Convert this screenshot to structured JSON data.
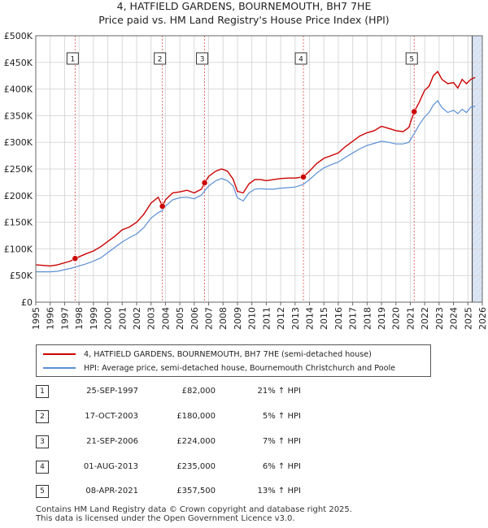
{
  "title_line1": "4, HATFIELD GARDENS, BOURNEMOUTH, BH7 7HE",
  "title_line2": "Price paid vs. HM Land Registry's House Price Index (HPI)",
  "legend": {
    "property_label": "4, HATFIELD GARDENS, BOURNEMOUTH, BH7 7HE (semi-detached house)",
    "hpi_label": "HPI: Average price, semi-detached house, Bournemouth Christchurch and Poole"
  },
  "colors": {
    "property": "#cc0000",
    "hpi": "#5b8fd6",
    "grid": "#d9d9d9",
    "shade": "#dde6f5",
    "marker_line": "#e06060"
  },
  "sales": [
    {
      "num": "1",
      "date": "25-SEP-1997",
      "price": "£82,000",
      "hpi": "21% ↑ HPI"
    },
    {
      "num": "2",
      "date": "17-OCT-2003",
      "price": "£180,000",
      "hpi": "5% ↑ HPI"
    },
    {
      "num": "3",
      "date": "21-SEP-2006",
      "price": "£224,000",
      "hpi": "7% ↑ HPI"
    },
    {
      "num": "4",
      "date": "01-AUG-2013",
      "price": "£235,000",
      "hpi": "6% ↑ HPI"
    },
    {
      "num": "5",
      "date": "08-APR-2021",
      "price": "£357,500",
      "hpi": "13% ↑ HPI"
    }
  ],
  "footer_line1": "Contains HM Land Registry data © Crown copyright and database right 2025.",
  "footer_line2": "This data is licensed under the Open Government Licence v3.0.",
  "chart_data": {
    "type": "line",
    "title": "4, HATFIELD GARDENS, BOURNEMOUTH, BH7 7HE",
    "subtitle": "Price paid vs. HM Land Registry's House Price Index (HPI)",
    "xlim": [
      1995,
      2026
    ],
    "ylim": [
      0,
      500000
    ],
    "x_ticks": [
      "1995",
      "1996",
      "1997",
      "1998",
      "1999",
      "2000",
      "2001",
      "2002",
      "2003",
      "2004",
      "2005",
      "2006",
      "2007",
      "2008",
      "2009",
      "2010",
      "2011",
      "2012",
      "2013",
      "2014",
      "2015",
      "2016",
      "2017",
      "2018",
      "2019",
      "2020",
      "2021",
      "2022",
      "2023",
      "2024",
      "2025",
      "2026"
    ],
    "y_ticks": [
      {
        "value": 0,
        "label": "£0"
      },
      {
        "value": 50000,
        "label": "£50K"
      },
      {
        "value": 100000,
        "label": "£100K"
      },
      {
        "value": 150000,
        "label": "£150K"
      },
      {
        "value": 200000,
        "label": "£200K"
      },
      {
        "value": 250000,
        "label": "£250K"
      },
      {
        "value": 300000,
        "label": "£300K"
      },
      {
        "value": 350000,
        "label": "£350K"
      },
      {
        "value": 400000,
        "label": "£400K"
      },
      {
        "value": 450000,
        "label": "£450K"
      },
      {
        "value": 500000,
        "label": "£500K"
      }
    ],
    "projection_start": 2025.3,
    "series": [
      {
        "name": "4, HATFIELD GARDENS, BOURNEMOUTH, BH7 7HE (semi-detached house)",
        "x": [
          1995.0,
          1995.5,
          1996.0,
          1996.5,
          1997.0,
          1997.4,
          1997.73,
          1998.0,
          1998.5,
          1999.0,
          1999.5,
          2000.0,
          2000.5,
          2001.0,
          2001.5,
          2002.0,
          2002.5,
          2003.0,
          2003.5,
          2003.79,
          2004.0,
          2004.5,
          2005.0,
          2005.5,
          2006.0,
          2006.5,
          2006.72,
          2007.0,
          2007.5,
          2007.9,
          2008.3,
          2008.7,
          2009.0,
          2009.4,
          2009.8,
          2010.2,
          2010.6,
          2011.0,
          2011.5,
          2012.0,
          2012.5,
          2013.0,
          2013.58,
          2014.0,
          2014.5,
          2015.0,
          2015.5,
          2016.0,
          2016.5,
          2017.0,
          2017.5,
          2018.0,
          2018.5,
          2019.0,
          2019.5,
          2020.0,
          2020.5,
          2020.9,
          2021.27,
          2021.6,
          2022.0,
          2022.3,
          2022.6,
          2022.9,
          2023.2,
          2023.6,
          2024.0,
          2024.3,
          2024.6,
          2024.9,
          2025.2,
          2025.5
        ],
        "y": [
          70000,
          69000,
          68000,
          70000,
          74000,
          77000,
          82000,
          85000,
          91000,
          96000,
          104000,
          114000,
          124000,
          136000,
          141000,
          150000,
          165000,
          186000,
          197000,
          180000,
          192000,
          205000,
          207000,
          210000,
          205000,
          212000,
          224000,
          236000,
          246000,
          250000,
          246000,
          231000,
          208000,
          205000,
          222000,
          230000,
          230000,
          228000,
          230000,
          232000,
          233000,
          233000,
          235000,
          246000,
          260000,
          270000,
          275000,
          280000,
          292000,
          302000,
          312000,
          318000,
          322000,
          330000,
          326000,
          322000,
          320000,
          328000,
          357500,
          374000,
          398000,
          405000,
          425000,
          433000,
          418000,
          410000,
          412000,
          402000,
          418000,
          410000,
          418000,
          422000
        ]
      },
      {
        "name": "HPI: Average price, semi-detached house, Bournemouth Christchurch and Poole",
        "x": [
          1995.0,
          1995.5,
          1996.0,
          1996.5,
          1997.0,
          1997.5,
          1998.0,
          1998.5,
          1999.0,
          1999.5,
          2000.0,
          2000.5,
          2001.0,
          2001.5,
          2002.0,
          2002.5,
          2003.0,
          2003.5,
          2003.79,
          2004.0,
          2004.5,
          2005.0,
          2005.5,
          2006.0,
          2006.5,
          2006.72,
          2007.0,
          2007.5,
          2007.9,
          2008.3,
          2008.7,
          2009.0,
          2009.4,
          2009.8,
          2010.2,
          2010.6,
          2011.0,
          2011.5,
          2012.0,
          2012.5,
          2013.0,
          2013.58,
          2014.0,
          2014.5,
          2015.0,
          2015.5,
          2016.0,
          2016.5,
          2017.0,
          2017.5,
          2018.0,
          2018.5,
          2019.0,
          2019.5,
          2020.0,
          2020.5,
          2020.9,
          2021.27,
          2021.6,
          2022.0,
          2022.3,
          2022.6,
          2022.9,
          2023.2,
          2023.6,
          2024.0,
          2024.3,
          2024.6,
          2024.9,
          2025.2,
          2025.5
        ],
        "y": [
          57000,
          57000,
          57000,
          58000,
          61000,
          64000,
          68000,
          72000,
          77000,
          83000,
          93000,
          103000,
          113000,
          121000,
          128000,
          140000,
          158000,
          168000,
          172000,
          180000,
          192000,
          196000,
          197000,
          194000,
          201000,
          209000,
          218000,
          228000,
          232000,
          228000,
          218000,
          196000,
          190000,
          205000,
          212000,
          213000,
          212000,
          212000,
          214000,
          215000,
          216000,
          221000,
          230000,
          242000,
          252000,
          258000,
          263000,
          272000,
          280000,
          288000,
          294000,
          298000,
          302000,
          300000,
          297000,
          297000,
          300000,
          316000,
          332000,
          348000,
          356000,
          370000,
          378000,
          365000,
          356000,
          360000,
          354000,
          362000,
          356000,
          366000,
          368000
        ]
      }
    ],
    "markers": [
      {
        "label": "1",
        "x": 1997.73,
        "y": 82000
      },
      {
        "label": "2",
        "x": 2003.79,
        "y": 180000
      },
      {
        "label": "3",
        "x": 2006.72,
        "y": 224000
      },
      {
        "label": "4",
        "x": 2013.58,
        "y": 235000
      },
      {
        "label": "5",
        "x": 2021.27,
        "y": 357500
      }
    ]
  }
}
